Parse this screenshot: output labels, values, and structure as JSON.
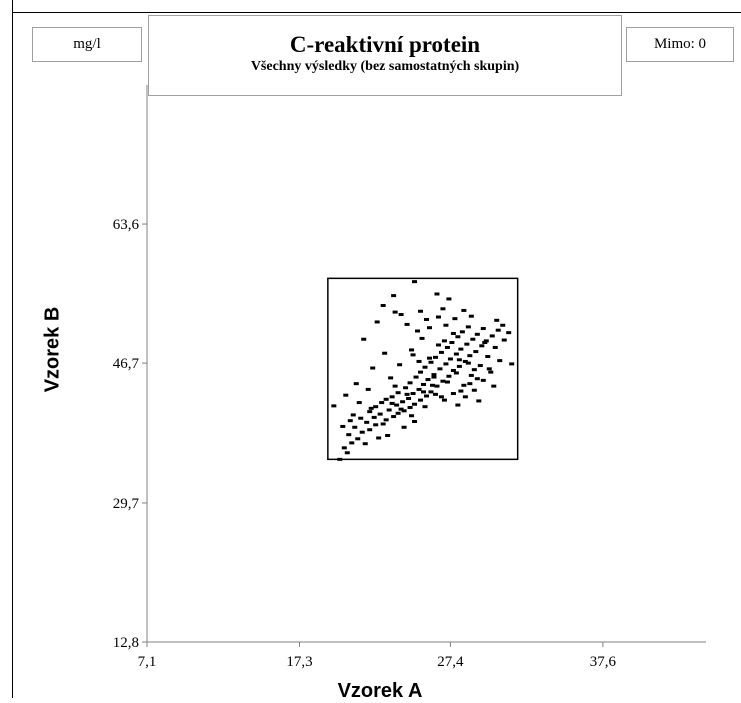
{
  "header": {
    "unit": "mg/l",
    "title": "C-reaktivní protein",
    "subtitle": "Všechny výsledky (bez samostatných skupin)",
    "outside": "Mimo: 0"
  },
  "chart_data": {
    "type": "scatter",
    "title": "C-reaktivní protein",
    "subtitle": "Všechny výsledky (bez samostatných skupin)",
    "xlabel": "Vzorek A",
    "ylabel": "Vzorek B",
    "unit": "mg/l",
    "xlim": [
      7.1,
      44.5
    ],
    "ylim": [
      12.8,
      80.5
    ],
    "x_ticks": [
      7.1,
      17.3,
      27.4,
      37.6
    ],
    "x_tick_labels": [
      "7,1",
      "17,3",
      "27,4",
      "37,6"
    ],
    "y_ticks": [
      12.8,
      29.7,
      46.7,
      63.6
    ],
    "y_tick_labels": [
      "12,8",
      "29,7",
      "46,7",
      "63,6"
    ],
    "acceptance_box": {
      "x": [
        19.2,
        31.9
      ],
      "y": [
        35.0,
        57.0
      ]
    },
    "grid": false,
    "legend": "none",
    "point_color": "#000000",
    "points": [
      [
        20.0,
        35.0
      ],
      [
        20.5,
        35.8
      ],
      [
        20.3,
        36.4
      ],
      [
        20.8,
        37.0
      ],
      [
        21.2,
        37.5
      ],
      [
        20.6,
        38.0
      ],
      [
        21.5,
        38.3
      ],
      [
        22.0,
        38.6
      ],
      [
        21.0,
        38.9
      ],
      [
        20.2,
        39.0
      ],
      [
        22.4,
        39.2
      ],
      [
        21.8,
        39.5
      ],
      [
        22.9,
        39.3
      ],
      [
        23.1,
        39.8
      ],
      [
        22.3,
        40.1
      ],
      [
        21.4,
        40.0
      ],
      [
        23.6,
        40.2
      ],
      [
        22.7,
        40.5
      ],
      [
        23.9,
        40.6
      ],
      [
        24.3,
        40.9
      ],
      [
        23.3,
        41.0
      ],
      [
        22.1,
        41.2
      ],
      [
        24.7,
        41.3
      ],
      [
        23.8,
        41.6
      ],
      [
        25.0,
        41.7
      ],
      [
        24.2,
        42.0
      ],
      [
        22.8,
        41.9
      ],
      [
        25.4,
        42.2
      ],
      [
        24.6,
        42.4
      ],
      [
        23.5,
        42.6
      ],
      [
        25.8,
        42.7
      ],
      [
        24.9,
        43.0
      ],
      [
        23.9,
        43.1
      ],
      [
        26.1,
        43.2
      ],
      [
        25.3,
        43.5
      ],
      [
        24.4,
        43.7
      ],
      [
        26.5,
        43.9
      ],
      [
        25.6,
        44.1
      ],
      [
        24.7,
        44.3
      ],
      [
        26.9,
        44.5
      ],
      [
        25.9,
        44.7
      ],
      [
        25.1,
        45.0
      ],
      [
        27.3,
        45.1
      ],
      [
        26.3,
        45.3
      ],
      [
        25.4,
        45.6
      ],
      [
        27.6,
        45.8
      ],
      [
        26.7,
        46.0
      ],
      [
        25.7,
        46.2
      ],
      [
        28.0,
        46.3
      ],
      [
        27.1,
        46.6
      ],
      [
        26.1,
        46.8
      ],
      [
        28.4,
        46.9
      ],
      [
        27.4,
        47.2
      ],
      [
        26.4,
        47.4
      ],
      [
        28.7,
        47.6
      ],
      [
        27.8,
        47.8
      ],
      [
        26.8,
        48.0
      ],
      [
        29.1,
        48.1
      ],
      [
        28.1,
        48.4
      ],
      [
        27.2,
        48.6
      ],
      [
        29.5,
        48.8
      ],
      [
        28.5,
        49.0
      ],
      [
        27.5,
        49.2
      ],
      [
        29.8,
        49.4
      ],
      [
        28.9,
        49.6
      ],
      [
        27.9,
        49.9
      ],
      [
        30.2,
        50.0
      ],
      [
        29.2,
        50.2
      ],
      [
        28.2,
        50.5
      ],
      [
        30.6,
        50.7
      ],
      [
        29.6,
        50.9
      ],
      [
        28.6,
        51.1
      ],
      [
        27.1,
        51.3
      ],
      [
        26.0,
        51.0
      ],
      [
        25.2,
        50.6
      ],
      [
        24.5,
        51.4
      ],
      [
        25.8,
        52.0
      ],
      [
        26.6,
        52.3
      ],
      [
        27.7,
        52.1
      ],
      [
        28.8,
        52.4
      ],
      [
        24.1,
        52.6
      ],
      [
        25.4,
        53.0
      ],
      [
        26.9,
        53.3
      ],
      [
        28.3,
        53.1
      ],
      [
        23.7,
        52.9
      ],
      [
        30.9,
        51.3
      ],
      [
        31.3,
        50.4
      ],
      [
        31.0,
        49.5
      ],
      [
        30.4,
        48.6
      ],
      [
        29.9,
        47.5
      ],
      [
        30.7,
        47.0
      ],
      [
        29.4,
        46.4
      ],
      [
        30.1,
        45.6
      ],
      [
        28.8,
        45.2
      ],
      [
        29.6,
        44.6
      ],
      [
        28.3,
        44.0
      ],
      [
        29.0,
        43.4
      ],
      [
        27.6,
        43.0
      ],
      [
        28.4,
        42.6
      ],
      [
        27.0,
        42.2
      ],
      [
        22.5,
        51.7
      ],
      [
        21.6,
        49.6
      ],
      [
        23.0,
        47.9
      ],
      [
        22.2,
        46.1
      ],
      [
        21.1,
        44.2
      ],
      [
        20.4,
        42.8
      ],
      [
        19.6,
        41.5
      ],
      [
        20.9,
        40.4
      ],
      [
        21.9,
        43.5
      ],
      [
        23.4,
        44.9
      ],
      [
        24.0,
        46.5
      ],
      [
        24.8,
        48.3
      ],
      [
        25.5,
        49.7
      ],
      [
        26.2,
        44.0
      ],
      [
        26.8,
        42.6
      ],
      [
        25.0,
        39.6
      ],
      [
        24.3,
        38.9
      ],
      [
        22.6,
        37.6
      ],
      [
        21.7,
        36.9
      ],
      [
        23.2,
        37.9
      ],
      [
        27.9,
        41.6
      ],
      [
        29.3,
        42.1
      ],
      [
        30.3,
        43.9
      ],
      [
        31.5,
        46.6
      ],
      [
        26.5,
        55.1
      ],
      [
        25.0,
        56.6
      ],
      [
        27.3,
        54.5
      ],
      [
        23.6,
        54.9
      ],
      [
        22.9,
        53.7
      ],
      [
        24.9,
        47.7
      ],
      [
        25.3,
        46.9
      ],
      [
        26.0,
        47.3
      ],
      [
        26.6,
        48.9
      ],
      [
        27.0,
        49.4
      ],
      [
        27.6,
        50.3
      ],
      [
        28.0,
        47.1
      ],
      [
        28.6,
        46.7
      ],
      [
        29.0,
        45.9
      ],
      [
        29.7,
        49.2
      ],
      [
        30.5,
        51.9
      ],
      [
        26.3,
        45.0
      ],
      [
        25.6,
        43.2
      ],
      [
        24.5,
        42.9
      ],
      [
        23.7,
        43.9
      ],
      [
        23.1,
        42.3
      ],
      [
        22.4,
        41.4
      ],
      [
        21.3,
        41.9
      ],
      [
        20.7,
        39.7
      ],
      [
        22.0,
        40.8
      ],
      [
        23.5,
        41.8
      ],
      [
        24.1,
        41.1
      ],
      [
        24.8,
        40.3
      ],
      [
        25.7,
        41.4
      ],
      [
        26.4,
        42.9
      ],
      [
        27.2,
        44.4
      ],
      [
        27.8,
        45.5
      ],
      [
        28.1,
        43.3
      ],
      [
        28.7,
        44.2
      ],
      [
        29.2,
        44.8
      ],
      [
        30.0,
        46.0
      ]
    ]
  }
}
